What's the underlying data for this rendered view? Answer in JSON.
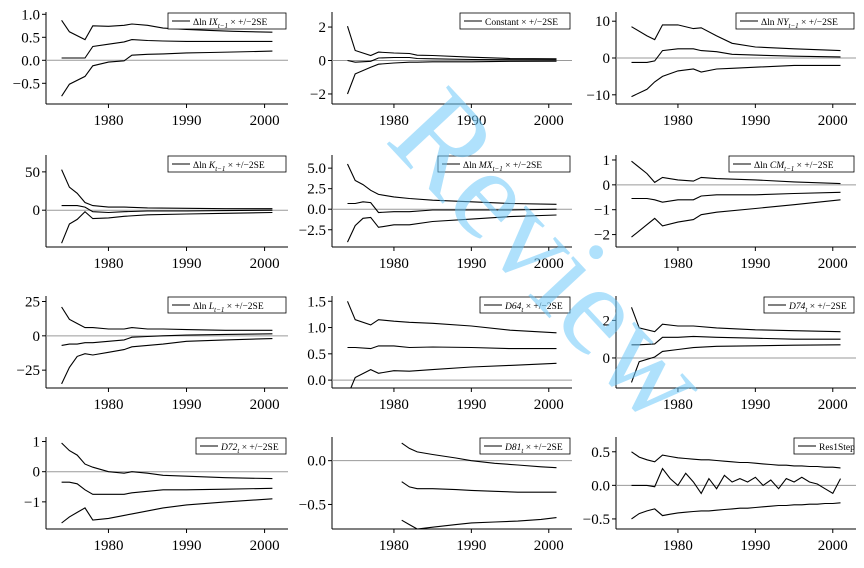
{
  "figure": {
    "watermark": "Review"
  },
  "chart_data": [
    {
      "type": "line",
      "legend": [
        "Δln ",
        "IX",
        "t−1",
        " × +/−2SE"
      ],
      "x_years": [
        1974,
        1975,
        1977,
        1978,
        1980,
        1982,
        1983,
        1985,
        1987,
        1990,
        1993,
        1996,
        2001
      ],
      "series": [
        {
          "role": "upper",
          "values": [
            0.87,
            0.62,
            0.45,
            0.75,
            0.74,
            0.76,
            0.79,
            0.76,
            0.7,
            0.67,
            0.65,
            0.63,
            0.61
          ]
        },
        {
          "role": "estimate",
          "values": [
            0.05,
            0.05,
            0.05,
            0.3,
            0.35,
            0.4,
            0.45,
            0.43,
            0.42,
            0.41,
            0.41,
            0.41,
            0.41
          ]
        },
        {
          "role": "lower",
          "values": [
            -0.78,
            -0.52,
            -0.35,
            -0.12,
            -0.04,
            -0.01,
            0.11,
            0.13,
            0.14,
            0.16,
            0.17,
            0.18,
            0.2
          ]
        }
      ],
      "x_ticks": [
        "1980",
        "1990",
        "2000"
      ],
      "y_ticks": [
        "1.0",
        "0.5",
        "0.0",
        "−0.5"
      ],
      "xlim": [
        1972,
        2003
      ],
      "ylim": [
        -0.95,
        1.05
      ]
    },
    {
      "type": "line",
      "legend": [
        "Constant × +/−2SE"
      ],
      "x_years": [
        1974,
        1975,
        1977,
        1978,
        1980,
        1982,
        1983,
        1985,
        1990,
        1995,
        2001
      ],
      "series": [
        {
          "role": "upper",
          "values": [
            2.05,
            0.6,
            0.3,
            0.5,
            0.45,
            0.42,
            0.32,
            0.3,
            0.2,
            0.12,
            0.1
          ]
        },
        {
          "role": "estimate",
          "values": [
            0.0,
            -0.1,
            -0.05,
            0.15,
            0.18,
            0.18,
            0.12,
            0.1,
            0.06,
            0.05,
            0.04
          ]
        },
        {
          "role": "lower",
          "values": [
            -2.0,
            -0.8,
            -0.4,
            -0.22,
            -0.15,
            -0.1,
            -0.1,
            -0.08,
            -0.08,
            -0.05,
            -0.04
          ]
        }
      ],
      "x_ticks": [
        "1980",
        "1990",
        "2000"
      ],
      "y_ticks": [
        "2",
        "0",
        "−2"
      ],
      "xlim": [
        1972,
        2003
      ],
      "ylim": [
        -2.6,
        2.9
      ]
    },
    {
      "type": "line",
      "legend": [
        "Δln ",
        "NY",
        "t−1",
        " × +/−2SE"
      ],
      "x_years": [
        1974,
        1976,
        1977,
        1978,
        1980,
        1982,
        1983,
        1985,
        1987,
        1990,
        1995,
        2001
      ],
      "series": [
        {
          "role": "upper",
          "values": [
            8.5,
            6.0,
            5.0,
            9.0,
            9.0,
            8.0,
            8.2,
            6.0,
            4.0,
            3.0,
            2.5,
            2.0
          ]
        },
        {
          "role": "estimate",
          "values": [
            -1.2,
            -1.2,
            -0.8,
            2.0,
            2.5,
            2.5,
            2.0,
            1.7,
            1.0,
            0.8,
            0.5,
            0.3
          ]
        },
        {
          "role": "lower",
          "values": [
            -10.5,
            -8.5,
            -6.5,
            -5.0,
            -3.5,
            -3.0,
            -3.8,
            -3.0,
            -2.8,
            -2.5,
            -2.0,
            -2.0
          ]
        }
      ],
      "x_ticks": [
        "1980",
        "1990",
        "2000"
      ],
      "y_ticks": [
        "10",
        "0",
        "−10"
      ],
      "xlim": [
        1972,
        2003
      ],
      "ylim": [
        -12.5,
        12.5
      ]
    },
    {
      "type": "line",
      "legend": [
        "Δln ",
        "K",
        "t−1",
        " × +/−2SE"
      ],
      "x_years": [
        1974,
        1975,
        1976,
        1977,
        1978,
        1980,
        1982,
        1985,
        1990,
        1995,
        2001
      ],
      "series": [
        {
          "role": "upper",
          "values": [
            53,
            30,
            22,
            10,
            6,
            4,
            4,
            3,
            2.5,
            2,
            2
          ]
        },
        {
          "role": "estimate",
          "values": [
            6,
            6,
            6,
            4,
            -2,
            -3,
            -2,
            -1,
            -1,
            -0.5,
            0
          ]
        },
        {
          "role": "lower",
          "values": [
            -43,
            -18,
            -12,
            -2,
            -11,
            -10,
            -8,
            -6,
            -5,
            -4,
            -3
          ]
        }
      ],
      "x_ticks": [
        "1980",
        "1990",
        "2000"
      ],
      "y_ticks": [
        "50",
        "0"
      ],
      "xlim": [
        1972,
        2003
      ],
      "ylim": [
        -48,
        72
      ]
    },
    {
      "type": "line",
      "legend": [
        "Δln ",
        "MX",
        "t−1",
        " × +/−2SE"
      ],
      "x_years": [
        1974,
        1975,
        1976,
        1977,
        1978,
        1980,
        1982,
        1985,
        1990,
        1995,
        2001
      ],
      "series": [
        {
          "role": "upper",
          "values": [
            5.5,
            3.5,
            3.0,
            2.3,
            1.8,
            1.5,
            1.3,
            1.1,
            0.9,
            0.7,
            0.6
          ]
        },
        {
          "role": "estimate",
          "values": [
            0.7,
            0.7,
            0.9,
            0.8,
            -0.4,
            -0.3,
            -0.3,
            -0.1,
            -0.1,
            -0.1,
            0.0
          ]
        },
        {
          "role": "lower",
          "values": [
            -4.0,
            -2.0,
            -1.1,
            -1.0,
            -2.2,
            -1.9,
            -1.9,
            -1.5,
            -1.2,
            -0.9,
            -0.7
          ]
        }
      ],
      "x_ticks": [
        "1980",
        "1990",
        "2000"
      ],
      "y_ticks": [
        "5.0",
        "2.5",
        "0.0",
        "−2.5"
      ],
      "xlim": [
        1972,
        2003
      ],
      "ylim": [
        -4.6,
        6.6
      ]
    },
    {
      "type": "line",
      "legend": [
        "Δln ",
        "CM",
        "t−1",
        " × +/−2SE"
      ],
      "x_years": [
        1974,
        1976,
        1977,
        1978,
        1980,
        1982,
        1983,
        1985,
        1990,
        1995,
        2001
      ],
      "series": [
        {
          "role": "upper",
          "values": [
            0.95,
            0.45,
            0.1,
            0.3,
            0.2,
            0.15,
            0.3,
            0.25,
            0.2,
            0.12,
            0.05
          ]
        },
        {
          "role": "estimate",
          "values": [
            -0.55,
            -0.55,
            -0.6,
            -0.7,
            -0.6,
            -0.6,
            -0.45,
            -0.4,
            -0.4,
            -0.35,
            -0.3
          ]
        },
        {
          "role": "lower",
          "values": [
            -2.1,
            -1.6,
            -1.35,
            -1.65,
            -1.5,
            -1.4,
            -1.2,
            -1.1,
            -0.95,
            -0.8,
            -0.6
          ]
        }
      ],
      "x_ticks": [
        "1980",
        "1990",
        "2000"
      ],
      "y_ticks": [
        "1",
        "0",
        "−1",
        "−2"
      ],
      "xlim": [
        1972,
        2003
      ],
      "ylim": [
        -2.5,
        1.2
      ]
    },
    {
      "type": "line",
      "legend": [
        "Δln ",
        "L",
        "t−1",
        " × +/−2SE"
      ],
      "x_years": [
        1974,
        1975,
        1976,
        1977,
        1978,
        1980,
        1982,
        1983,
        1985,
        1987,
        1990,
        1995,
        2001
      ],
      "series": [
        {
          "role": "upper",
          "values": [
            21,
            12,
            9,
            6,
            6,
            5,
            5,
            6,
            5,
            5,
            4.5,
            4,
            4
          ]
        },
        {
          "role": "estimate",
          "values": [
            -7,
            -6,
            -6,
            -5,
            -5,
            -4,
            -3,
            -1,
            -0.5,
            0,
            0.5,
            1,
            1.5
          ]
        },
        {
          "role": "lower",
          "values": [
            -35,
            -23,
            -15,
            -13,
            -14,
            -12,
            -10,
            -8,
            -7,
            -6,
            -4,
            -3,
            -2
          ]
        }
      ],
      "x_ticks": [
        "1980",
        "1990",
        "2000"
      ],
      "y_ticks": [
        "25",
        "0",
        "−25"
      ],
      "xlim": [
        1972,
        2003
      ],
      "ylim": [
        -38,
        29
      ]
    },
    {
      "type": "line",
      "legend": [
        "D64",
        "t",
        " × +/−2SE"
      ],
      "x_years": [
        1974,
        1975,
        1977,
        1978,
        1980,
        1982,
        1985,
        1990,
        1995,
        2001
      ],
      "series": [
        {
          "role": "upper",
          "values": [
            1.5,
            1.15,
            1.05,
            1.15,
            1.12,
            1.1,
            1.08,
            1.03,
            0.95,
            0.9
          ]
        },
        {
          "role": "estimate",
          "values": [
            0.62,
            0.62,
            0.6,
            0.65,
            0.65,
            0.62,
            0.63,
            0.62,
            0.6,
            0.6
          ]
        },
        {
          "role": "lower",
          "values": [
            -0.3,
            0.05,
            0.2,
            0.13,
            0.18,
            0.17,
            0.2,
            0.25,
            0.28,
            0.32
          ]
        }
      ],
      "x_ticks": [
        "1980",
        "1990",
        "2000"
      ],
      "y_ticks": [
        "1.5",
        "1.0",
        "0.5",
        "0.0"
      ],
      "xlim": [
        1972,
        2003
      ],
      "ylim": [
        -0.15,
        1.6
      ]
    },
    {
      "type": "line",
      "legend": [
        "D74",
        "t",
        " × +/−2SE"
      ],
      "x_years": [
        1974,
        1975,
        1977,
        1978,
        1980,
        1982,
        1985,
        1990,
        1995,
        2001
      ],
      "series": [
        {
          "role": "upper",
          "values": [
            2.7,
            1.6,
            1.4,
            1.8,
            1.7,
            1.7,
            1.6,
            1.5,
            1.45,
            1.4
          ]
        },
        {
          "role": "estimate",
          "values": [
            0.7,
            0.7,
            0.75,
            1.1,
            1.1,
            1.15,
            1.1,
            1.05,
            1.0,
            1.0
          ]
        },
        {
          "role": "lower",
          "values": [
            -1.3,
            -0.2,
            0.05,
            0.35,
            0.45,
            0.55,
            0.62,
            0.65,
            0.68,
            0.7
          ]
        }
      ],
      "x_ticks": [
        "1980",
        "1990",
        "2000"
      ],
      "y_ticks": [
        "2",
        "0"
      ],
      "xlim": [
        1972,
        2003
      ],
      "ylim": [
        -1.6,
        3.3
      ]
    },
    {
      "type": "line",
      "legend": [
        "D72",
        "t",
        " × +/−2SE"
      ],
      "x_years": [
        1974,
        1975,
        1976,
        1977,
        1978,
        1980,
        1982,
        1983,
        1985,
        1987,
        1990,
        1995,
        2001
      ],
      "series": [
        {
          "role": "upper",
          "values": [
            0.95,
            0.7,
            0.55,
            0.25,
            0.15,
            0.0,
            -0.05,
            0.0,
            -0.05,
            -0.12,
            -0.15,
            -0.2,
            -0.23
          ]
        },
        {
          "role": "estimate",
          "values": [
            -0.35,
            -0.35,
            -0.4,
            -0.6,
            -0.75,
            -0.75,
            -0.75,
            -0.7,
            -0.65,
            -0.6,
            -0.6,
            -0.58,
            -0.55
          ]
        },
        {
          "role": "lower",
          "values": [
            -1.7,
            -1.5,
            -1.35,
            -1.2,
            -1.6,
            -1.55,
            -1.45,
            -1.4,
            -1.3,
            -1.2,
            -1.1,
            -1.0,
            -0.9
          ]
        }
      ],
      "x_ticks": [
        "1980",
        "1990",
        "2000"
      ],
      "y_ticks": [
        "1",
        "0",
        "−1"
      ],
      "xlim": [
        1972,
        2003
      ],
      "ylim": [
        -1.9,
        1.15
      ]
    },
    {
      "type": "line",
      "legend": [
        "D81",
        "t",
        " × +/−2SE"
      ],
      "x_years": [
        1981,
        1982,
        1983,
        1985,
        1988,
        1990,
        1993,
        1996,
        1999,
        2001
      ],
      "series": [
        {
          "role": "upper",
          "values": [
            0.2,
            0.14,
            0.1,
            0.07,
            0.03,
            0.0,
            -0.03,
            -0.05,
            -0.07,
            -0.08
          ]
        },
        {
          "role": "estimate",
          "values": [
            -0.24,
            -0.3,
            -0.32,
            -0.32,
            -0.33,
            -0.34,
            -0.35,
            -0.36,
            -0.36,
            -0.36
          ]
        },
        {
          "role": "lower",
          "values": [
            -0.68,
            -0.73,
            -0.78,
            -0.76,
            -0.73,
            -0.71,
            -0.7,
            -0.69,
            -0.67,
            -0.65
          ]
        }
      ],
      "x_ticks": [
        "1980",
        "1990",
        "2000"
      ],
      "y_ticks": [
        "0.0",
        "−0.5"
      ],
      "xlim": [
        1972,
        2003
      ],
      "ylim": [
        -0.78,
        0.27
      ]
    },
    {
      "type": "line",
      "legend": [
        "Res1Step"
      ],
      "x_years": [
        1974,
        1975,
        1976,
        1977,
        1978,
        1979,
        1980,
        1981,
        1982,
        1983,
        1984,
        1985,
        1986,
        1987,
        1988,
        1989,
        1990,
        1991,
        1992,
        1993,
        1994,
        1995,
        1996,
        1997,
        1998,
        1999,
        2000,
        2001
      ],
      "series": [
        {
          "role": "upper",
          "values": [
            0.5,
            0.42,
            0.38,
            0.35,
            0.45,
            0.43,
            0.41,
            0.4,
            0.39,
            0.38,
            0.38,
            0.37,
            0.36,
            0.35,
            0.34,
            0.34,
            0.33,
            0.32,
            0.31,
            0.3,
            0.3,
            0.29,
            0.29,
            0.28,
            0.28,
            0.27,
            0.27,
            0.26
          ]
        },
        {
          "role": "residual",
          "values": [
            0.0,
            0.0,
            0.0,
            -0.02,
            0.25,
            0.1,
            0.0,
            0.18,
            0.05,
            -0.12,
            0.1,
            -0.05,
            0.15,
            0.05,
            0.1,
            0.05,
            0.12,
            0.0,
            0.08,
            -0.05,
            0.1,
            0.05,
            0.12,
            0.05,
            0.02,
            -0.05,
            -0.12,
            0.1
          ]
        },
        {
          "role": "lower",
          "values": [
            -0.5,
            -0.42,
            -0.38,
            -0.35,
            -0.45,
            -0.43,
            -0.41,
            -0.4,
            -0.39,
            -0.38,
            -0.38,
            -0.37,
            -0.36,
            -0.35,
            -0.34,
            -0.34,
            -0.33,
            -0.32,
            -0.31,
            -0.3,
            -0.3,
            -0.29,
            -0.29,
            -0.28,
            -0.28,
            -0.27,
            -0.27,
            -0.26
          ]
        }
      ],
      "x_ticks": [
        "1980",
        "1990",
        "2000"
      ],
      "y_ticks": [
        "0.5",
        "0.0",
        "−0.5"
      ],
      "xlim": [
        1972,
        2003
      ],
      "ylim": [
        -0.65,
        0.72
      ]
    }
  ]
}
